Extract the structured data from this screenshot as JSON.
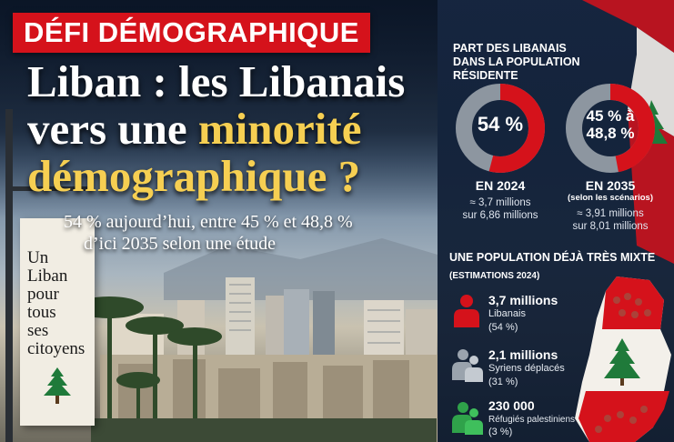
{
  "tag": "DÉFI DÉMOGRAPHIQUE",
  "headline": {
    "line1": "Liban : les Libanais",
    "line2_a": "vers une ",
    "line2_b": "minorité",
    "line3": "démographique ?"
  },
  "subtitle": {
    "line1": "54 % aujourd’hui, entre 45 % et 48,8 %",
    "line2": "d’ici 2035 selon une étude"
  },
  "banner": {
    "lines": [
      "Un",
      "Liban",
      "pour",
      "tous",
      "ses",
      "citoyens"
    ]
  },
  "panel": {
    "heading_line1": "PART DES LIBANAIS",
    "heading_line2": "DANS LA POPULATION RÉSIDENTE",
    "donuts": [
      {
        "value_text": "54 %",
        "share": 0.54,
        "year": "EN 2024",
        "note": "",
        "detail1": "≈ 3,7 millions",
        "detail2": "sur 6,86 millions"
      },
      {
        "value_text_1": "45 % à",
        "value_text_2": "48,8 %",
        "share": 0.47,
        "year": "EN 2035",
        "note": "(selon les scénarios)",
        "detail1": "≈ 3,91 millions",
        "detail2": "sur 8,01 millions"
      }
    ],
    "section2_title": "UNE POPULATION DÉJÀ TRÈS MIXTE",
    "section2_sub": "(ESTIMATIONS 2024)",
    "groups": [
      {
        "value": "3,7 millions",
        "label": "Libanais",
        "pct": "(54 %)",
        "icon": "person-icon",
        "color": "#d5121b"
      },
      {
        "value": "2,1 millions",
        "label": "Syriens déplacés",
        "pct": "(31 %)",
        "icon": "people-icon",
        "color": "#9aa3ad"
      },
      {
        "value": "230 000",
        "label": "Réfugiés palestiniens",
        "pct": "(3 %)",
        "icon": "people-icon",
        "color": "#2fa24a"
      }
    ],
    "colors": {
      "red": "#d5121b",
      "grey": "#8d96a0",
      "green": "#2fa24a",
      "gold": "#f6cf52"
    }
  }
}
